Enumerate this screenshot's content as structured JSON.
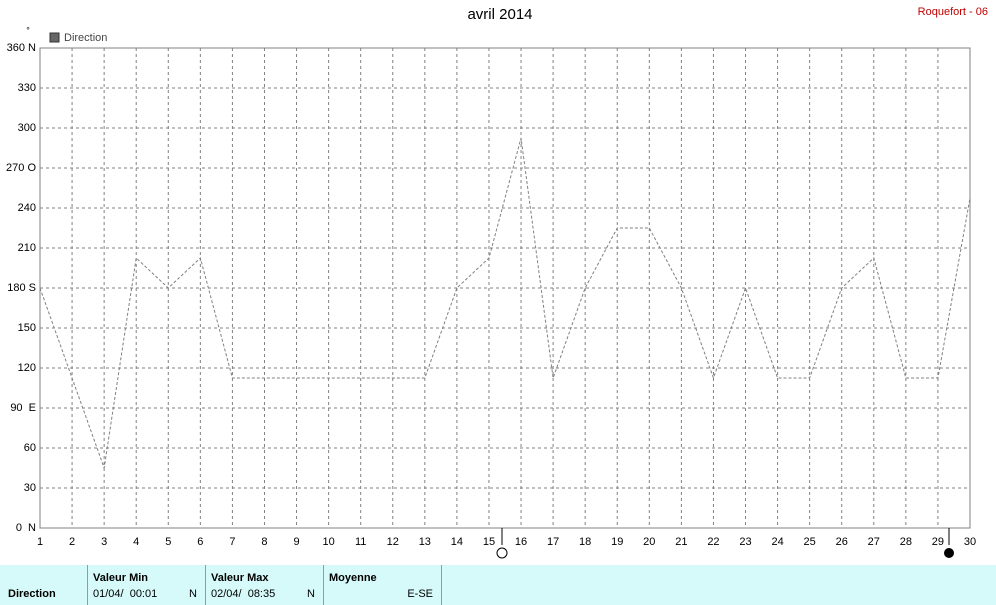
{
  "chart_data": {
    "type": "line",
    "title": "avril 2014",
    "source": "Roquefort - 06",
    "y_unit": "°",
    "x": [
      1,
      2,
      3,
      4,
      5,
      6,
      7,
      8,
      9,
      10,
      11,
      12,
      13,
      14,
      15,
      16,
      17,
      18,
      19,
      20,
      21,
      22,
      23,
      24,
      25,
      26,
      27,
      28,
      29,
      30
    ],
    "xlim": [
      1,
      30
    ],
    "xticks": [
      1,
      2,
      3,
      4,
      5,
      6,
      7,
      8,
      9,
      10,
      11,
      12,
      13,
      14,
      15,
      16,
      17,
      18,
      19,
      20,
      21,
      22,
      23,
      24,
      25,
      26,
      27,
      28,
      29,
      30
    ],
    "ylim": [
      0,
      360
    ],
    "yticks": [
      {
        "value": 0,
        "label": "0  N"
      },
      30,
      60,
      {
        "value": 90,
        "label": "90  E"
      },
      120,
      150,
      {
        "value": 180,
        "label": "180 S"
      },
      210,
      240,
      {
        "value": 270,
        "label": "270 O"
      },
      300,
      330,
      {
        "value": 360,
        "label": "360 N"
      }
    ],
    "grid": true,
    "series": [
      {
        "name": "Direction",
        "color": "#808080",
        "values": [
          180,
          112.5,
          45,
          202.5,
          180,
          202.5,
          112.5,
          112.5,
          112.5,
          112.5,
          112.5,
          112.5,
          112.5,
          180,
          202.5,
          292.5,
          112.5,
          180,
          225,
          225,
          180,
          112.5,
          180,
          112.5,
          112.5,
          180,
          202.5,
          112.5,
          112.5,
          247.5
        ]
      }
    ]
  },
  "summary": {
    "row_label": "Direction",
    "columns": [
      {
        "header": "Valeur Min",
        "date": "01/04/  00:01",
        "value": "N"
      },
      {
        "header": "Valeur Max",
        "date": "02/04/  08:35",
        "value": "N"
      },
      {
        "header": "Moyenne",
        "value": "E-SE"
      }
    ]
  }
}
